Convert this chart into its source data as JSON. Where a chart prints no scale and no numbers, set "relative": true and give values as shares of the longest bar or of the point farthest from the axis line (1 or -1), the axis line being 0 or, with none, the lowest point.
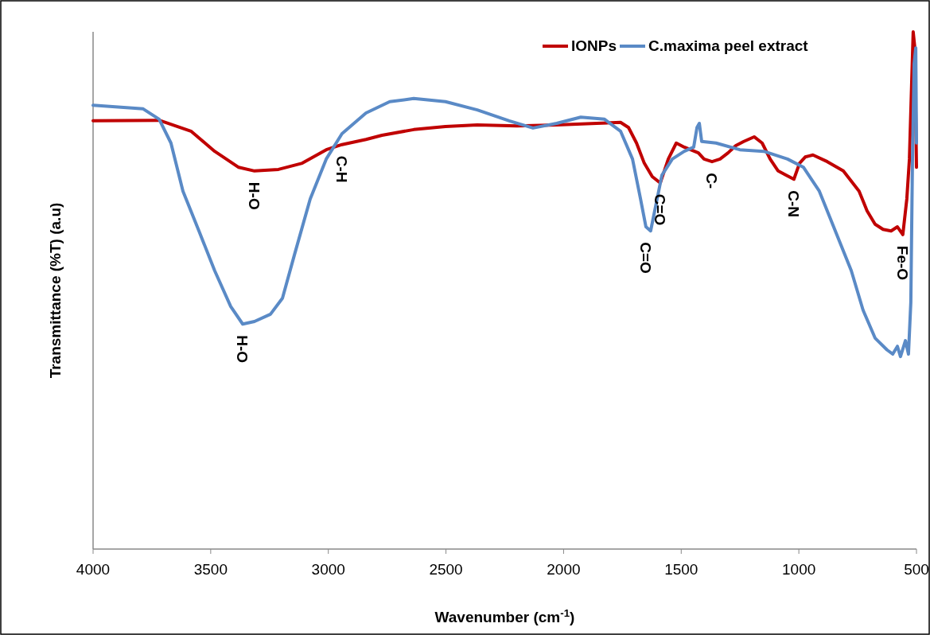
{
  "chart_data": {
    "type": "line",
    "relative": true,
    "xlabel": "Wavenumber (cm$^{-1}$)",
    "ylabel": "Transmittance (%T) (a.u)",
    "xlim": [
      4000,
      500
    ],
    "xticks": [
      4000,
      3500,
      3000,
      2500,
      2000,
      1500,
      1000,
      500
    ],
    "legend": "top right",
    "line_style": "solid",
    "series": [
      {
        "name": "IONPs",
        "color": "#c00000",
        "x": [
          4000,
          3719,
          3584,
          3483,
          3381,
          3314,
          3212,
          3111,
          3009,
          2942,
          2840,
          2772,
          2637,
          2502,
          2367,
          2198,
          2029,
          1859,
          1758,
          1724,
          1690,
          1657,
          1623,
          1589,
          1555,
          1521,
          1487,
          1460,
          1427,
          1403,
          1369,
          1335,
          1301,
          1268,
          1234,
          1190,
          1156,
          1122,
          1088,
          1055,
          1021,
          997,
          973,
          940,
          879,
          811,
          744,
          710,
          676,
          642,
          608,
          581,
          558,
          541,
          530,
          520,
          514,
          507,
          500
        ],
        "values": [
          0.828,
          0.829,
          0.808,
          0.769,
          0.738,
          0.731,
          0.734,
          0.746,
          0.772,
          0.782,
          0.792,
          0.8,
          0.811,
          0.817,
          0.82,
          0.818,
          0.82,
          0.823,
          0.825,
          0.815,
          0.785,
          0.746,
          0.72,
          0.708,
          0.754,
          0.785,
          0.777,
          0.772,
          0.766,
          0.754,
          0.749,
          0.754,
          0.766,
          0.78,
          0.788,
          0.797,
          0.785,
          0.754,
          0.731,
          0.723,
          0.715,
          0.746,
          0.758,
          0.762,
          0.749,
          0.731,
          0.692,
          0.654,
          0.628,
          0.618,
          0.615,
          0.623,
          0.608,
          0.677,
          0.754,
          0.908,
          1,
          0.969,
          0.738
        ]
      },
      {
        "name": "C.maxima peel extract",
        "color": "#5a8ac6",
        "x": [
          4000,
          3787,
          3719,
          3669,
          3618,
          3550,
          3483,
          3415,
          3364,
          3314,
          3246,
          3195,
          3144,
          3077,
          3009,
          2942,
          2840,
          2739,
          2637,
          2502,
          2367,
          2231,
          2130,
          2029,
          1927,
          1826,
          1758,
          1707,
          1673,
          1650,
          1630,
          1606,
          1582,
          1538,
          1487,
          1447,
          1433,
          1423,
          1413,
          1352,
          1251,
          1149,
          1048,
          980,
          913,
          845,
          777,
          727,
          676,
          625,
          601,
          581,
          568,
          547,
          534,
          524,
          517,
          510,
          503,
          500
        ],
        "values": [
          0.858,
          0.851,
          0.831,
          0.785,
          0.692,
          0.615,
          0.538,
          0.469,
          0.435,
          0.44,
          0.454,
          0.485,
          0.569,
          0.677,
          0.754,
          0.803,
          0.843,
          0.865,
          0.871,
          0.865,
          0.849,
          0.828,
          0.814,
          0.823,
          0.835,
          0.831,
          0.808,
          0.754,
          0.677,
          0.623,
          0.615,
          0.669,
          0.723,
          0.754,
          0.769,
          0.777,
          0.815,
          0.823,
          0.788,
          0.785,
          0.772,
          0.769,
          0.754,
          0.738,
          0.692,
          0.615,
          0.538,
          0.462,
          0.408,
          0.385,
          0.377,
          0.392,
          0.372,
          0.403,
          0.377,
          0.477,
          0.754,
          0.938,
          0.969,
          0.785
        ]
      }
    ],
    "annotations": [
      {
        "text": "H-O",
        "x": 3314,
        "y": 0.731
      },
      {
        "text": "H-O",
        "x": 3364,
        "y": 0.435
      },
      {
        "text": "C-H",
        "x": 2942,
        "y": 0.782
      },
      {
        "text": "C=O",
        "x": 1589,
        "y": 0.708
      },
      {
        "text": "C=O",
        "x": 1650,
        "y": 0.615
      },
      {
        "text": "C-",
        "x": 1369,
        "y": 0.749
      },
      {
        "text": "C-N",
        "x": 1021,
        "y": 0.715
      },
      {
        "text": "Fe-O",
        "x": 558,
        "y": 0.608
      }
    ]
  }
}
